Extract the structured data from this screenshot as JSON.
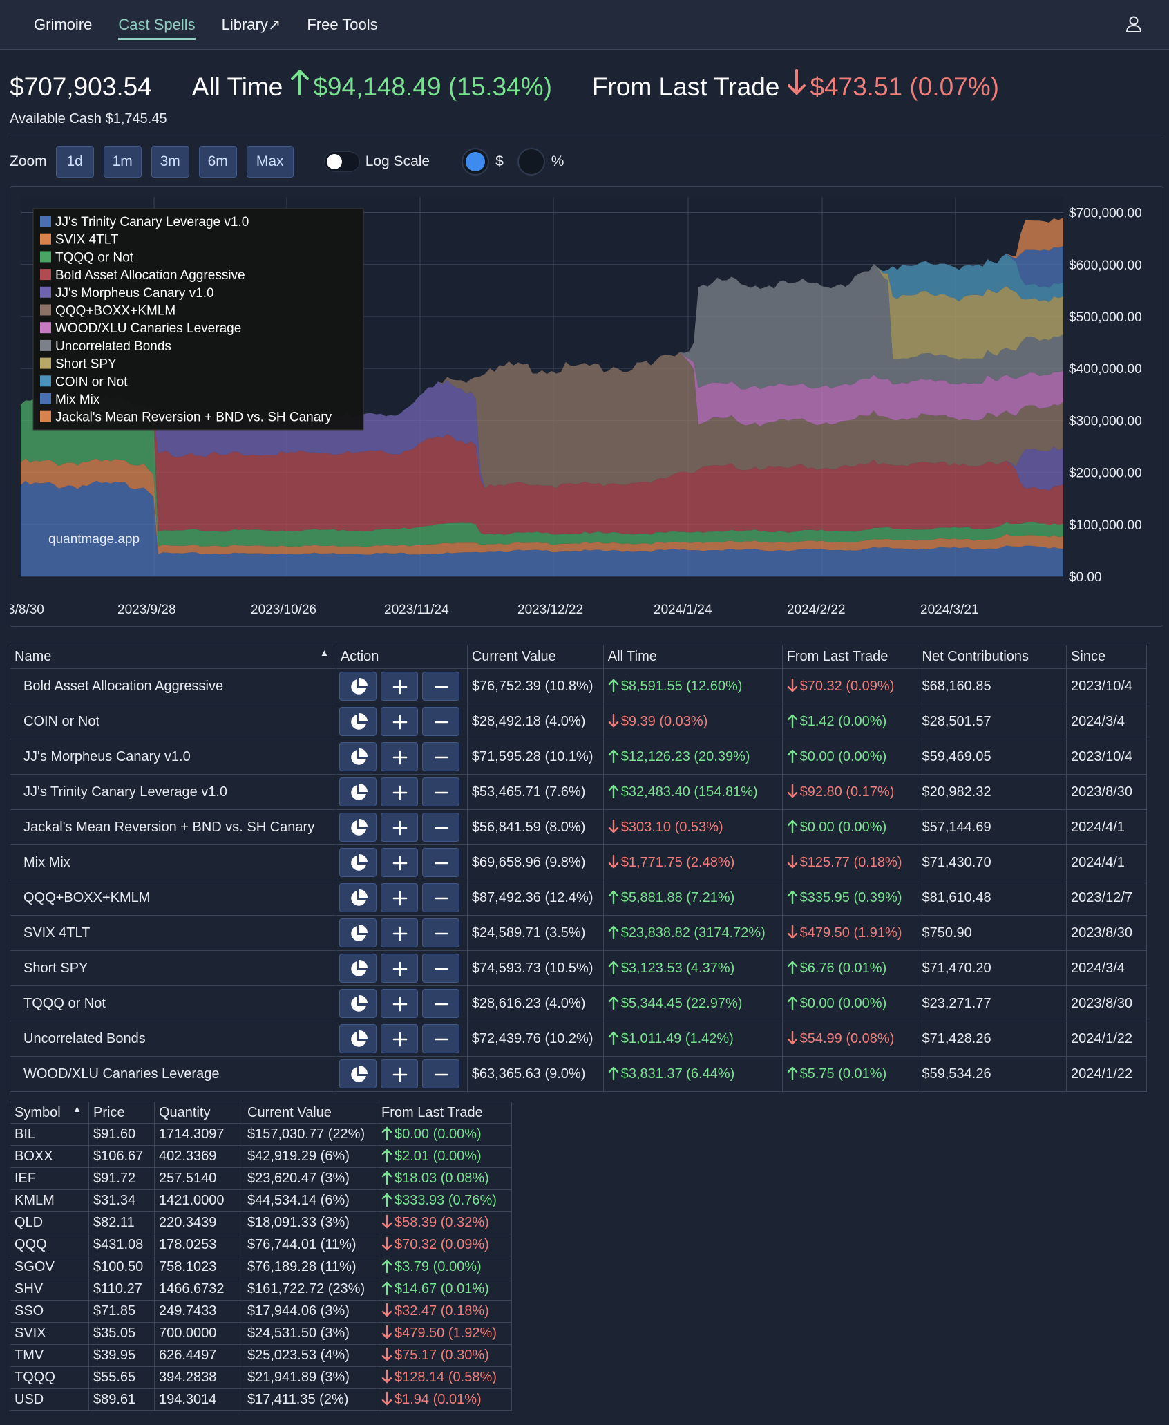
{
  "nav": {
    "items": [
      {
        "label": "Grimoire",
        "active": false
      },
      {
        "label": "Cast Spells",
        "active": true
      },
      {
        "label": "Library↗",
        "active": false
      },
      {
        "label": "Free Tools",
        "active": false
      }
    ],
    "user_icon": "user-icon"
  },
  "summary": {
    "total": "$707,903.54",
    "all_time_label": "All Time",
    "all_time_value": "$94,148.49 (15.34%)",
    "last_trade_label": "From Last Trade",
    "last_trade_value": "$473.51 (0.07%)",
    "available_cash": "Available Cash $1,745.45"
  },
  "zoom": {
    "label": "Zoom",
    "buttons": [
      "1d",
      "1m",
      "3m",
      "6m",
      "Max"
    ],
    "log_scale_label": "Log Scale",
    "log_scale_on": false,
    "mode_dollar_label": "$",
    "mode_percent_label": "%",
    "selected_mode": "$"
  },
  "colors": {
    "up": "#79e28f",
    "down": "#f07d78",
    "accent": "#8fd0c0",
    "button": "#2e4066"
  },
  "chart_data": {
    "type": "area",
    "stacked": true,
    "watermark": "quantmage.app",
    "x_ticks": [
      "3/8/30",
      "2023/9/28",
      "2023/10/26",
      "2023/11/24",
      "2023/12/22",
      "2024/1/24",
      "2024/2/22",
      "2024/3/21"
    ],
    "y_ticks": [
      "$700,000.00",
      "$600,000.00",
      "$500,000.00",
      "$400,000.00",
      "$300,000.00",
      "$200,000.00",
      "$100,000.00",
      "$0.00"
    ],
    "ylim": [
      0,
      730000
    ],
    "dates": [
      "2023/8/30",
      "2023/9/26",
      "2023/9/28",
      "2023/11/28",
      "2023/12/7",
      "2024/1/19",
      "2024/1/22",
      "2024/3/1",
      "2024/3/4",
      "2024/3/29",
      "2024/4/1",
      "2024/4/10"
    ],
    "legend_position": "top-left",
    "series": [
      {
        "name": "JJ's Trinity Canary Leverage v1.0",
        "color": "#4a6fb3",
        "values": [
          180000,
          180000,
          45000,
          45000,
          50000,
          52000,
          52000,
          55000,
          55000,
          58000,
          58000,
          55000
        ]
      },
      {
        "name": "SVIX 4TLT",
        "color": "#d8824e",
        "values": [
          45000,
          45000,
          15000,
          20000,
          15000,
          15000,
          16000,
          17000,
          17000,
          22000,
          22000,
          24000
        ]
      },
      {
        "name": "TQQQ or Not",
        "color": "#4aa564",
        "values": [
          120000,
          120000,
          30000,
          40000,
          20000,
          20000,
          21000,
          22000,
          22000,
          24000,
          24000,
          26000
        ]
      },
      {
        "name": "Bold Asset Allocation Aggressive",
        "color": "#b24a52",
        "values": [
          0,
          0,
          150000,
          170000,
          95000,
          120000,
          125000,
          130000,
          128000,
          115000,
          70000,
          77000
        ]
      },
      {
        "name": "JJ's Morpheus Canary v1.0",
        "color": "#6f63ae",
        "values": [
          0,
          0,
          70000,
          110000,
          0,
          0,
          0,
          0,
          0,
          0,
          75000,
          72000
        ]
      },
      {
        "name": "QQQ+BOXX+KMLM",
        "color": "#8b7264",
        "values": [
          0,
          0,
          0,
          0,
          230000,
          240000,
          90000,
          95000,
          92000,
          96000,
          87000,
          87000
        ]
      },
      {
        "name": "WOOD/XLU Canaries Leverage",
        "color": "#c77ac2",
        "values": [
          0,
          0,
          0,
          0,
          0,
          0,
          70000,
          75000,
          70000,
          75000,
          63000,
          63000
        ]
      },
      {
        "name": "Uncorrelated Bonds",
        "color": "#7b8089",
        "values": [
          0,
          0,
          0,
          0,
          0,
          0,
          200000,
          210000,
          50000,
          52000,
          72000,
          72000
        ]
      },
      {
        "name": "Short SPY",
        "color": "#b8a868",
        "values": [
          0,
          0,
          0,
          0,
          0,
          0,
          0,
          0,
          120000,
          125000,
          75000,
          75000
        ]
      },
      {
        "name": "COIN or Not",
        "color": "#4b93b8",
        "values": [
          0,
          0,
          0,
          0,
          0,
          0,
          0,
          0,
          60000,
          62000,
          28000,
          28000
        ]
      },
      {
        "name": "Mix Mix",
        "color": "#4a6fb3",
        "values": [
          0,
          0,
          0,
          0,
          0,
          0,
          0,
          0,
          0,
          0,
          70000,
          70000
        ]
      },
      {
        "name": "Jackal's Mean Reversion + BND vs. SH Canary",
        "color": "#d8824e",
        "values": [
          0,
          0,
          0,
          0,
          0,
          0,
          0,
          0,
          0,
          0,
          57000,
          57000
        ]
      }
    ]
  },
  "positions": {
    "headers": [
      "Name",
      "Action",
      "Current Value",
      "All Time",
      "From Last Trade",
      "Net Contributions",
      "Since"
    ],
    "rows": [
      {
        "name": "Bold Asset Allocation Aggressive",
        "value": "$76,752.39 (10.8%)",
        "all_time": "$8,591.55 (12.60%)",
        "all_time_dir": "up",
        "last": "$70.32 (0.09%)",
        "last_dir": "down",
        "net": "$68,160.85",
        "since": "2023/10/4"
      },
      {
        "name": "COIN or Not",
        "value": "$28,492.18 (4.0%)",
        "all_time": "$9.39 (0.03%)",
        "all_time_dir": "down",
        "last": "$1.42 (0.00%)",
        "last_dir": "up",
        "net": "$28,501.57",
        "since": "2024/3/4"
      },
      {
        "name": "JJ's Morpheus Canary v1.0",
        "value": "$71,595.28 (10.1%)",
        "all_time": "$12,126.23 (20.39%)",
        "all_time_dir": "up",
        "last": "$0.00 (0.00%)",
        "last_dir": "up",
        "net": "$59,469.05",
        "since": "2023/10/4"
      },
      {
        "name": "JJ's Trinity Canary Leverage v1.0",
        "value": "$53,465.71 (7.6%)",
        "all_time": "$32,483.40 (154.81%)",
        "all_time_dir": "up",
        "last": "$92.80 (0.17%)",
        "last_dir": "down",
        "net": "$20,982.32",
        "since": "2023/8/30"
      },
      {
        "name": "Jackal's Mean Reversion + BND vs. SH Canary",
        "value": "$56,841.59 (8.0%)",
        "all_time": "$303.10 (0.53%)",
        "all_time_dir": "down",
        "last": "$0.00 (0.00%)",
        "last_dir": "up",
        "net": "$57,144.69",
        "since": "2024/4/1"
      },
      {
        "name": "Mix Mix",
        "value": "$69,658.96 (9.8%)",
        "all_time": "$1,771.75 (2.48%)",
        "all_time_dir": "down",
        "last": "$125.77 (0.18%)",
        "last_dir": "down",
        "net": "$71,430.70",
        "since": "2024/4/1"
      },
      {
        "name": "QQQ+BOXX+KMLM",
        "value": "$87,492.36 (12.4%)",
        "all_time": "$5,881.88 (7.21%)",
        "all_time_dir": "up",
        "last": "$335.95 (0.39%)",
        "last_dir": "up",
        "net": "$81,610.48",
        "since": "2023/12/7"
      },
      {
        "name": "SVIX 4TLT",
        "value": "$24,589.71 (3.5%)",
        "all_time": "$23,838.82 (3174.72%)",
        "all_time_dir": "up",
        "last": "$479.50 (1.91%)",
        "last_dir": "down",
        "net": "$750.90",
        "since": "2023/8/30"
      },
      {
        "name": "Short SPY",
        "value": "$74,593.73 (10.5%)",
        "all_time": "$3,123.53 (4.37%)",
        "all_time_dir": "up",
        "last": "$6.76 (0.01%)",
        "last_dir": "up",
        "net": "$71,470.20",
        "since": "2024/3/4"
      },
      {
        "name": "TQQQ or Not",
        "value": "$28,616.23 (4.0%)",
        "all_time": "$5,344.45 (22.97%)",
        "all_time_dir": "up",
        "last": "$0.00 (0.00%)",
        "last_dir": "up",
        "net": "$23,271.77",
        "since": "2023/8/30"
      },
      {
        "name": "Uncorrelated Bonds",
        "value": "$72,439.76 (10.2%)",
        "all_time": "$1,011.49 (1.42%)",
        "all_time_dir": "up",
        "last": "$54.99 (0.08%)",
        "last_dir": "down",
        "net": "$71,428.26",
        "since": "2024/1/22"
      },
      {
        "name": "WOOD/XLU Canaries Leverage",
        "value": "$63,365.63 (9.0%)",
        "all_time": "$3,831.37 (6.44%)",
        "all_time_dir": "up",
        "last": "$5.75 (0.01%)",
        "last_dir": "up",
        "net": "$59,534.26",
        "since": "2024/1/22"
      }
    ]
  },
  "holdings": {
    "headers": [
      "Symbol",
      "Price",
      "Quantity",
      "Current Value",
      "From Last Trade"
    ],
    "rows": [
      {
        "symbol": "BIL",
        "price": "$91.60",
        "qty": "1714.3097",
        "value": "$157,030.77 (22%)",
        "last": "$0.00 (0.00%)",
        "dir": "up"
      },
      {
        "symbol": "BOXX",
        "price": "$106.67",
        "qty": "402.3369",
        "value": "$42,919.29 (6%)",
        "last": "$2.01 (0.00%)",
        "dir": "up"
      },
      {
        "symbol": "IEF",
        "price": "$91.72",
        "qty": "257.5140",
        "value": "$23,620.47 (3%)",
        "last": "$18.03 (0.08%)",
        "dir": "up"
      },
      {
        "symbol": "KMLM",
        "price": "$31.34",
        "qty": "1421.0000",
        "value": "$44,534.14 (6%)",
        "last": "$333.93 (0.76%)",
        "dir": "up"
      },
      {
        "symbol": "QLD",
        "price": "$82.11",
        "qty": "220.3439",
        "value": "$18,091.33 (3%)",
        "last": "$58.39 (0.32%)",
        "dir": "down"
      },
      {
        "symbol": "QQQ",
        "price": "$431.08",
        "qty": "178.0253",
        "value": "$76,744.01 (11%)",
        "last": "$70.32 (0.09%)",
        "dir": "down"
      },
      {
        "symbol": "SGOV",
        "price": "$100.50",
        "qty": "758.1023",
        "value": "$76,189.28 (11%)",
        "last": "$3.79 (0.00%)",
        "dir": "up"
      },
      {
        "symbol": "SHV",
        "price": "$110.27",
        "qty": "1466.6732",
        "value": "$161,722.72 (23%)",
        "last": "$14.67 (0.01%)",
        "dir": "up"
      },
      {
        "symbol": "SSO",
        "price": "$71.85",
        "qty": "249.7433",
        "value": "$17,944.06 (3%)",
        "last": "$32.47 (0.18%)",
        "dir": "down"
      },
      {
        "symbol": "SVIX",
        "price": "$35.05",
        "qty": "700.0000",
        "value": "$24,531.50 (3%)",
        "last": "$479.50 (1.92%)",
        "dir": "down"
      },
      {
        "symbol": "TMV",
        "price": "$39.95",
        "qty": "626.4497",
        "value": "$25,023.53 (4%)",
        "last": "$75.17 (0.30%)",
        "dir": "down"
      },
      {
        "symbol": "TQQQ",
        "price": "$55.65",
        "qty": "394.2838",
        "value": "$21,941.89 (3%)",
        "last": "$128.14 (0.58%)",
        "dir": "down"
      },
      {
        "symbol": "USD",
        "price": "$89.61",
        "qty": "194.3014",
        "value": "$17,411.35 (2%)",
        "last": "$1.94 (0.01%)",
        "dir": "down"
      }
    ]
  }
}
